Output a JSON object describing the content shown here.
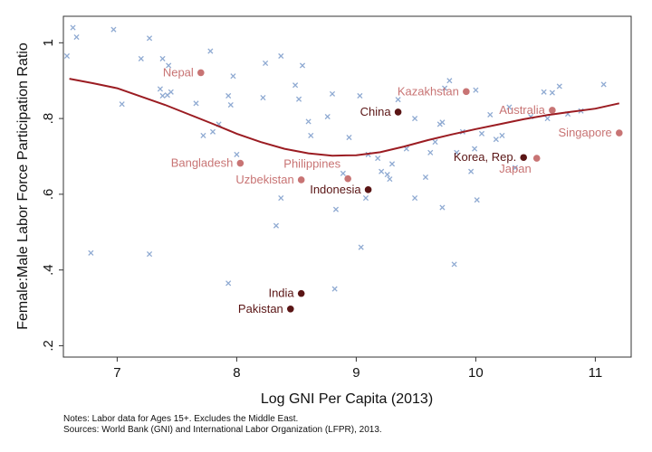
{
  "chart_data": {
    "type": "scatter",
    "xlabel": "Log GNI Per Capita (2013)",
    "ylabel": "Female:Male Labor Force Participation Ratio",
    "xlim": [
      6.55,
      11.3
    ],
    "ylim": [
      0.17,
      1.07
    ],
    "xticks": [
      7,
      8,
      9,
      10,
      11
    ],
    "yticks": [
      0.2,
      0.4,
      0.6,
      0.8,
      1.0
    ],
    "xtick_labels": [
      "7",
      "8",
      "9",
      "10",
      "11"
    ],
    "ytick_labels": [
      ".2",
      ".4",
      ".6",
      ".8",
      "1"
    ],
    "grid": false,
    "legend": "none",
    "colors": {
      "others": "#8faad2",
      "labeled_light": "#c87474",
      "labeled_dark": "#5a1515",
      "fit_line": "#9b1c22",
      "frame": "#333333"
    },
    "others": [
      [
        6.58,
        0.965
      ],
      [
        6.63,
        1.04
      ],
      [
        6.66,
        1.015
      ],
      [
        6.78,
        0.445
      ],
      [
        6.97,
        1.035
      ],
      [
        7.04,
        0.838
      ],
      [
        7.2,
        0.958
      ],
      [
        7.27,
        1.012
      ],
      [
        7.27,
        0.442
      ],
      [
        7.36,
        0.878
      ],
      [
        7.38,
        0.86
      ],
      [
        7.38,
        0.958
      ],
      [
        7.42,
        0.862
      ],
      [
        7.43,
        0.94
      ],
      [
        7.45,
        0.87
      ],
      [
        7.66,
        0.84
      ],
      [
        7.72,
        0.755
      ],
      [
        7.78,
        0.978
      ],
      [
        7.8,
        0.765
      ],
      [
        7.85,
        0.785
      ],
      [
        7.93,
        0.365
      ],
      [
        7.97,
        0.912
      ],
      [
        7.93,
        0.86
      ],
      [
        7.95,
        0.836
      ],
      [
        8.0,
        0.705
      ],
      [
        8.22,
        0.855
      ],
      [
        8.24,
        0.946
      ],
      [
        8.33,
        0.517
      ],
      [
        8.37,
        0.965
      ],
      [
        8.37,
        0.59
      ],
      [
        8.49,
        0.888
      ],
      [
        8.52,
        0.851
      ],
      [
        8.55,
        0.94
      ],
      [
        8.6,
        0.792
      ],
      [
        8.62,
        0.755
      ],
      [
        8.76,
        0.805
      ],
      [
        8.8,
        0.865
      ],
      [
        8.83,
        0.56
      ],
      [
        8.82,
        0.35
      ],
      [
        8.89,
        0.655
      ],
      [
        8.94,
        0.75
      ],
      [
        9.03,
        0.86
      ],
      [
        9.04,
        0.46
      ],
      [
        9.08,
        0.59
      ],
      [
        9.1,
        0.705
      ],
      [
        9.18,
        0.695
      ],
      [
        9.21,
        0.66
      ],
      [
        9.26,
        0.652
      ],
      [
        9.28,
        0.64
      ],
      [
        9.3,
        0.68
      ],
      [
        9.35,
        0.85
      ],
      [
        9.42,
        0.72
      ],
      [
        9.49,
        0.8
      ],
      [
        9.49,
        0.59
      ],
      [
        9.58,
        0.645
      ],
      [
        9.62,
        0.71
      ],
      [
        9.66,
        0.738
      ],
      [
        9.7,
        0.785
      ],
      [
        9.72,
        0.565
      ],
      [
        9.72,
        0.79
      ],
      [
        9.74,
        0.88
      ],
      [
        9.78,
        0.9
      ],
      [
        9.82,
        0.415
      ],
      [
        9.84,
        0.71
      ],
      [
        9.89,
        0.765
      ],
      [
        9.96,
        0.66
      ],
      [
        9.99,
        0.72
      ],
      [
        10.0,
        0.875
      ],
      [
        10.01,
        0.585
      ],
      [
        10.05,
        0.76
      ],
      [
        10.12,
        0.81
      ],
      [
        10.17,
        0.745
      ],
      [
        10.22,
        0.755
      ],
      [
        10.28,
        0.83
      ],
      [
        10.33,
        0.67
      ],
      [
        10.46,
        0.805
      ],
      [
        10.57,
        0.87
      ],
      [
        10.6,
        0.8
      ],
      [
        10.64,
        0.868
      ],
      [
        10.7,
        0.885
      ],
      [
        10.77,
        0.812
      ],
      [
        10.88,
        0.82
      ],
      [
        11.07,
        0.89
      ]
    ],
    "labeled": [
      {
        "label": "Nepal",
        "x": 7.7,
        "y": 0.921,
        "tone": "light",
        "anchor": "end",
        "dx": -8,
        "dy": 4
      },
      {
        "label": "Bangladesh",
        "x": 8.03,
        "y": 0.682,
        "tone": "light",
        "anchor": "end",
        "dx": -8,
        "dy": 4
      },
      {
        "label": "Uzbekistan",
        "x": 8.54,
        "y": 0.638,
        "tone": "light",
        "anchor": "end",
        "dx": -8,
        "dy": 4
      },
      {
        "label": "Philippines",
        "x": 8.93,
        "y": 0.641,
        "tone": "light",
        "anchor": "end",
        "dx": -8,
        "dy": -12
      },
      {
        "label": "Indonesia",
        "x": 9.1,
        "y": 0.612,
        "tone": "dark",
        "anchor": "end",
        "dx": -8,
        "dy": 4
      },
      {
        "label": "India",
        "x": 8.54,
        "y": 0.338,
        "tone": "dark",
        "anchor": "end",
        "dx": -8,
        "dy": 4
      },
      {
        "label": "Pakistan",
        "x": 8.45,
        "y": 0.297,
        "tone": "dark",
        "anchor": "end",
        "dx": -8,
        "dy": 4
      },
      {
        "label": "China",
        "x": 9.35,
        "y": 0.817,
        "tone": "dark",
        "anchor": "end",
        "dx": -8,
        "dy": 4
      },
      {
        "label": "Kazakhstan",
        "x": 9.92,
        "y": 0.871,
        "tone": "light",
        "anchor": "end",
        "dx": -8,
        "dy": 4
      },
      {
        "label": "Korea, Rep.",
        "x": 10.4,
        "y": 0.697,
        "tone": "dark",
        "anchor": "end",
        "dx": -8,
        "dy": 4
      },
      {
        "label": "Japan",
        "x": 10.51,
        "y": 0.695,
        "tone": "light",
        "anchor": "end",
        "dx": -6,
        "dy": 16
      },
      {
        "label": "Australia",
        "x": 10.64,
        "y": 0.822,
        "tone": "light",
        "anchor": "end",
        "dx": -8,
        "dy": 4
      },
      {
        "label": "Singapore",
        "x": 11.2,
        "y": 0.762,
        "tone": "light",
        "anchor": "end",
        "dx": -8,
        "dy": 4
      }
    ],
    "fit_line": [
      [
        6.6,
        0.905
      ],
      [
        6.8,
        0.893
      ],
      [
        7.0,
        0.88
      ],
      [
        7.2,
        0.858
      ],
      [
        7.4,
        0.836
      ],
      [
        7.6,
        0.811
      ],
      [
        7.8,
        0.786
      ],
      [
        8.0,
        0.76
      ],
      [
        8.2,
        0.738
      ],
      [
        8.4,
        0.72
      ],
      [
        8.6,
        0.708
      ],
      [
        8.8,
        0.702
      ],
      [
        9.0,
        0.703
      ],
      [
        9.2,
        0.711
      ],
      [
        9.4,
        0.726
      ],
      [
        9.6,
        0.743
      ],
      [
        9.8,
        0.758
      ],
      [
        10.0,
        0.772
      ],
      [
        10.2,
        0.785
      ],
      [
        10.4,
        0.798
      ],
      [
        10.6,
        0.809
      ],
      [
        10.8,
        0.818
      ],
      [
        11.0,
        0.826
      ],
      [
        11.2,
        0.84
      ]
    ]
  },
  "notes": {
    "line1": "Notes: Labor data for Ages 15+. Excludes the Middle East.",
    "line2": "Sources: World Bank (GNI) and International Labor Organization (LFPR), 2013."
  }
}
